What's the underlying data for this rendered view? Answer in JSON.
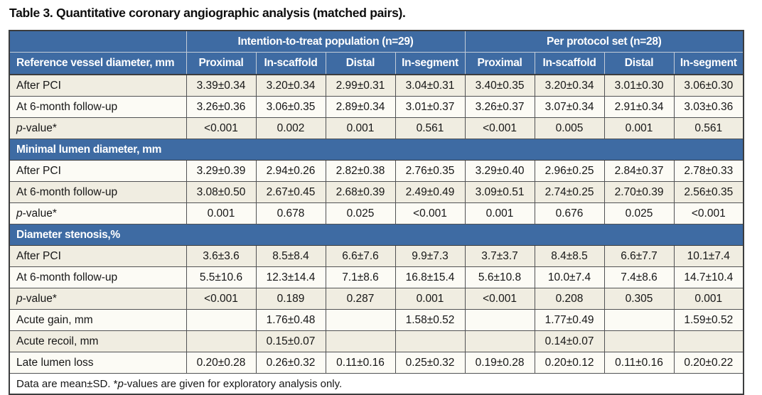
{
  "title": "Table 3. Quantitative coronary angiographic analysis (matched pairs).",
  "colors": {
    "header_blue": "#3e6ba3",
    "row_beige": "#f0ede1",
    "row_cream": "#fcfbf5",
    "grid_line": "#515254",
    "outer_border": "#3c3d3e",
    "header_divider": "#c3ccd8",
    "header_text": "#ffffff"
  },
  "table": {
    "group_headers": [
      {
        "label": "",
        "span": 1
      },
      {
        "label": "Intention-to-treat population (n=29)",
        "span": 4
      },
      {
        "label": "Per protocol set (n=28)",
        "span": 4
      }
    ],
    "column_headers": [
      "Reference vessel diameter, mm",
      "Proximal",
      "In-scaffold",
      "Distal",
      "In-segment",
      "Proximal",
      "In-scaffold",
      "Distal",
      "In-segment"
    ],
    "rows": [
      {
        "type": "data",
        "label": "After PCI",
        "values": [
          "3.39±0.34",
          "3.20±0.34",
          "2.99±0.31",
          "3.04±0.31",
          "3.40±0.35",
          "3.20±0.34",
          "3.01±0.30",
          "3.06±0.30"
        ]
      },
      {
        "type": "data",
        "label": "At 6-month follow-up",
        "values": [
          "3.26±0.36",
          "3.06±0.35",
          "2.89±0.34",
          "3.01±0.37",
          "3.26±0.37",
          "3.07±0.34",
          "2.91±0.34",
          "3.03±0.36"
        ]
      },
      {
        "type": "data",
        "label": "p-value*",
        "values": [
          "<0.001",
          "0.002",
          "0.001",
          "0.561",
          "<0.001",
          "0.005",
          "0.001",
          "0.561"
        ]
      },
      {
        "type": "section",
        "label": "Minimal lumen diameter, mm"
      },
      {
        "type": "data",
        "label": "After PCI",
        "values": [
          "3.29±0.39",
          "2.94±0.26",
          "2.82±0.38",
          "2.76±0.35",
          "3.29±0.40",
          "2.96±0.25",
          "2.84±0.37",
          "2.78±0.33"
        ]
      },
      {
        "type": "data",
        "label": "At 6-month follow-up",
        "values": [
          "3.08±0.50",
          "2.67±0.45",
          "2.68±0.39",
          "2.49±0.49",
          "3.09±0.51",
          "2.74±0.25",
          "2.70±0.39",
          "2.56±0.35"
        ]
      },
      {
        "type": "data",
        "label": "p-value*",
        "values": [
          "0.001",
          "0.678",
          "0.025",
          "<0.001",
          "0.001",
          "0.676",
          "0.025",
          "<0.001"
        ]
      },
      {
        "type": "section",
        "label": "Diameter stenosis,%"
      },
      {
        "type": "data",
        "label": "After PCI",
        "values": [
          "3.6±3.6",
          "8.5±8.4",
          "6.6±7.6",
          "9.9±7.3",
          "3.7±3.7",
          "8.4±8.5",
          "6.6±7.7",
          "10.1±7.4"
        ]
      },
      {
        "type": "data",
        "label": "At 6-month follow-up",
        "values": [
          "5.5±10.6",
          "12.3±14.4",
          "7.1±8.6",
          "16.8±15.4",
          "5.6±10.8",
          "10.0±7.4",
          "7.4±8.6",
          "14.7±10.4"
        ]
      },
      {
        "type": "data",
        "label": "p-value*",
        "values": [
          "<0.001",
          "0.189",
          "0.287",
          "0.001",
          "<0.001",
          "0.208",
          "0.305",
          "0.001"
        ]
      },
      {
        "type": "data",
        "label": "Acute gain, mm",
        "values": [
          "",
          "1.76±0.48",
          "",
          "1.58±0.52",
          "",
          "1.77±0.49",
          "",
          "1.59±0.52"
        ]
      },
      {
        "type": "data",
        "label": "Acute recoil, mm",
        "values": [
          "",
          "0.15±0.07",
          "",
          "",
          "",
          "0.14±0.07",
          "",
          ""
        ]
      },
      {
        "type": "data",
        "label": "Late lumen loss",
        "values": [
          "0.20±0.28",
          "0.26±0.32",
          "0.11±0.16",
          "0.25±0.32",
          "0.19±0.28",
          "0.20±0.12",
          "0.11±0.16",
          "0.20±0.22"
        ]
      }
    ],
    "footnote": "Data are mean±SD. *p-values are given for exploratory analysis only."
  }
}
